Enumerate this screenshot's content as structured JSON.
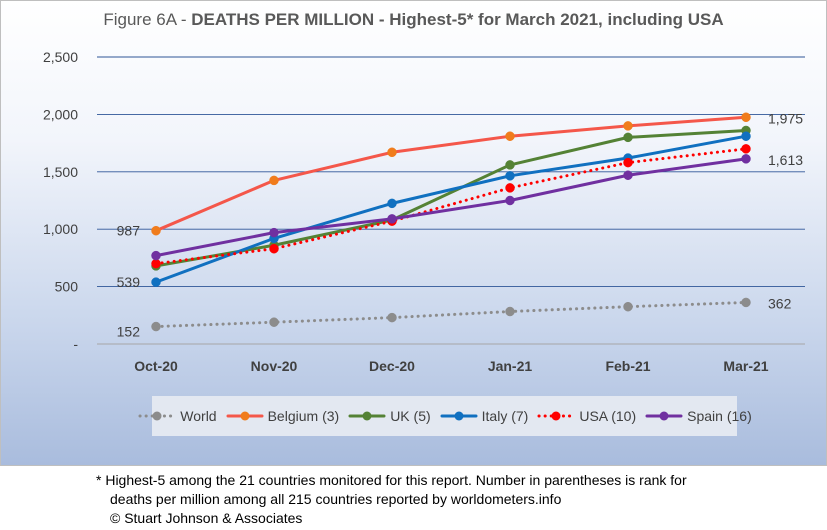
{
  "title": {
    "prefix": "Figure 6A - ",
    "bold": "DEATHS PER MILLION - Highest-5* for March 2021, including USA"
  },
  "chart_data": {
    "type": "line",
    "categories": [
      "Oct-20",
      "Nov-20",
      "Dec-20",
      "Jan-21",
      "Feb-21",
      "Mar-21"
    ],
    "ylim": [
      0,
      2500
    ],
    "y_ticks": [
      "-",
      "500",
      "1,000",
      "1,500",
      "2,000",
      "2,500"
    ],
    "grid": true,
    "legend": "bottom",
    "series": [
      {
        "name": "World",
        "color": "#8c8c8c",
        "dash": "dotted",
        "values": [
          152,
          190,
          230,
          283,
          325,
          362
        ]
      },
      {
        "name": "Belgium (3)",
        "color": "#f4574a",
        "markerColor": "#f07c1c",
        "dash": "solid",
        "values": [
          987,
          1425,
          1670,
          1810,
          1900,
          1975
        ]
      },
      {
        "name": "UK (5)",
        "color": "#548235",
        "dash": "solid",
        "values": [
          680,
          860,
          1080,
          1560,
          1800,
          1860
        ]
      },
      {
        "name": "Italy (7)",
        "color": "#1070c0",
        "dash": "solid",
        "values": [
          539,
          920,
          1225,
          1465,
          1620,
          1810
        ]
      },
      {
        "name": "USA (10)",
        "color": "#ff0000",
        "dash": "dotted",
        "values": [
          700,
          830,
          1070,
          1360,
          1580,
          1700
        ]
      },
      {
        "name": "Spain (16)",
        "color": "#7030a0",
        "dash": "solid",
        "values": [
          770,
          970,
          1090,
          1250,
          1470,
          1613
        ]
      }
    ],
    "data_labels": {
      "left": [
        "987",
        "539",
        "152"
      ],
      "right": [
        "1,975",
        "1,613",
        "362"
      ]
    }
  },
  "footnote": {
    "line1": "* Highest-5 among the 21 countries monitored for this report. Number in parentheses is rank for",
    "line2": "deaths per million among all 215 countries reported by worldometers.info",
    "line3": "© Stuart Johnson & Associates"
  }
}
